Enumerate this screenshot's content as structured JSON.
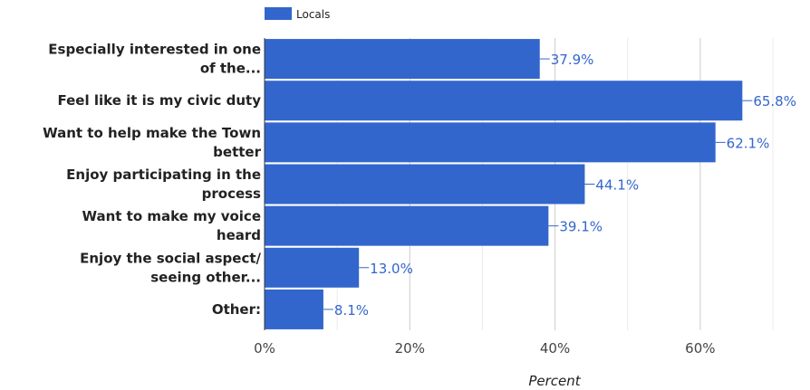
{
  "chart_data": {
    "type": "bar",
    "orientation": "horizontal",
    "categories": [
      [
        "Especially interested in one",
        "of the..."
      ],
      [
        "Feel like it is my civic duty"
      ],
      [
        "Want to help make the Town",
        "better"
      ],
      [
        "Enjoy participating in the",
        "process"
      ],
      [
        "Want to make my voice",
        "heard"
      ],
      [
        "Enjoy the social aspect/",
        "seeing other..."
      ],
      [
        "Other:"
      ]
    ],
    "series": [
      {
        "name": "Locals",
        "values": [
          37.9,
          65.8,
          62.1,
          44.1,
          39.1,
          13.0,
          8.1
        ],
        "labels": [
          "37.9%",
          "65.8%",
          "62.1%",
          "44.1%",
          "39.1%",
          "13.0%",
          "8.1%"
        ]
      }
    ],
    "xlabel": "Percent",
    "xlim": [
      0,
      70
    ],
    "xticks": [
      0,
      20,
      40,
      60
    ],
    "xtick_labels": [
      "0%",
      "20%",
      "40%",
      "60%"
    ],
    "minor_gridlines": [
      10,
      30,
      50,
      70
    ],
    "grid": true,
    "legend_position": "top",
    "colors": {
      "bar": "#3366cc",
      "data_label": "#3366cc",
      "gridline": "#cccccc",
      "minor_gridline": "#ebebeb",
      "axis": "#333333"
    }
  }
}
